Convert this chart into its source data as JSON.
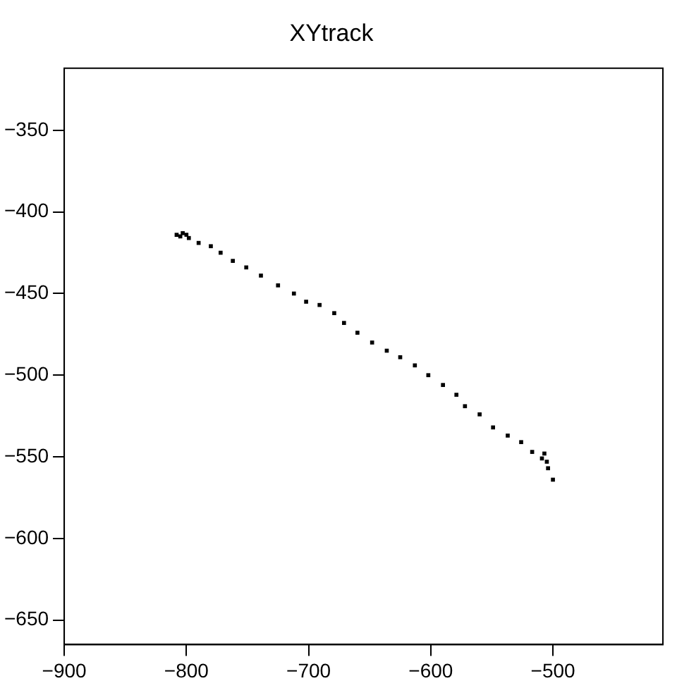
{
  "chart_data": {
    "type": "scatter",
    "title": "XYtrack",
    "marker": "square",
    "grid": false,
    "legend": false,
    "xlim": [
      -900,
      -410
    ],
    "xticks": [
      -900,
      -800,
      -700,
      -600,
      -500
    ],
    "ylim": [
      -665,
      -312
    ],
    "yticks": [
      -650,
      -600,
      -550,
      -500,
      -450,
      -400,
      -350
    ],
    "series": [
      {
        "color": "#000000",
        "x": [
          -808,
          -805,
          -803,
          -800,
          -798,
          -790,
          -780,
          -772,
          -762,
          -751,
          -739,
          -725,
          -712,
          -702,
          -691,
          -679,
          -671,
          -660,
          -648,
          -636,
          -625,
          -613,
          -602,
          -590,
          -579,
          -572,
          -560,
          -549,
          -537,
          -526,
          -517,
          -509,
          -507,
          -505,
          -504,
          -500
        ],
        "values": [
          -414,
          -415,
          -413,
          -414,
          -416,
          -419,
          -421,
          -425,
          -430,
          -434,
          -439,
          -445,
          -450,
          -455,
          -457,
          -462,
          -468,
          -474,
          -480,
          -485,
          -489,
          -494,
          -500,
          -506,
          -512,
          -519,
          -524,
          -532,
          -537,
          -541,
          -547,
          -551,
          -548,
          -553,
          -557,
          -564
        ]
      }
    ]
  }
}
